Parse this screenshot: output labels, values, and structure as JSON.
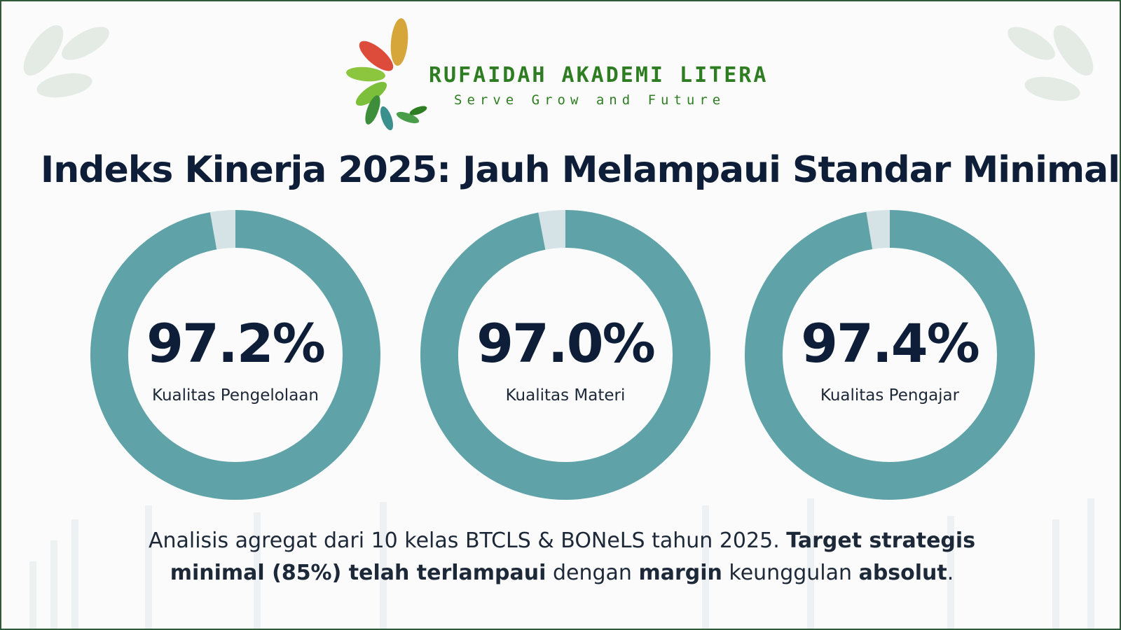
{
  "header": {
    "brand": "RUFAIDAH AKADEMI LITERA",
    "tagline": "Serve Grow and Future"
  },
  "title": "Indeks Kinerja 2025: Jauh Melampaui Standar Minimal",
  "chart_data": [
    {
      "type": "donut",
      "categories": [
        "Kualitas Pengelolaan"
      ],
      "values": [
        97.2
      ],
      "value_labels": [
        "97.2%"
      ],
      "ylim": [
        0,
        100
      ],
      "color": "#5fa3a8",
      "track_color": "#d5e2e6"
    },
    {
      "type": "donut",
      "categories": [
        "Kualitas Materi"
      ],
      "values": [
        97.0
      ],
      "value_labels": [
        "97.0%"
      ],
      "ylim": [
        0,
        100
      ],
      "color": "#5fa3a8",
      "track_color": "#d5e2e6"
    },
    {
      "type": "donut",
      "categories": [
        "Kualitas Pengajar"
      ],
      "values": [
        97.4
      ],
      "value_labels": [
        "97.4%"
      ],
      "ylim": [
        0,
        100
      ],
      "color": "#5fa3a8",
      "track_color": "#d5e2e6"
    }
  ],
  "footer": {
    "parts": [
      "Analisis agregat dari 10 kelas BTCLS & BONeLS tahun 2025. ",
      "Target strategis minimal (85%) telah terlampaui",
      " dengan ",
      "margin",
      " keunggulan ",
      "absolut",
      "."
    ]
  }
}
